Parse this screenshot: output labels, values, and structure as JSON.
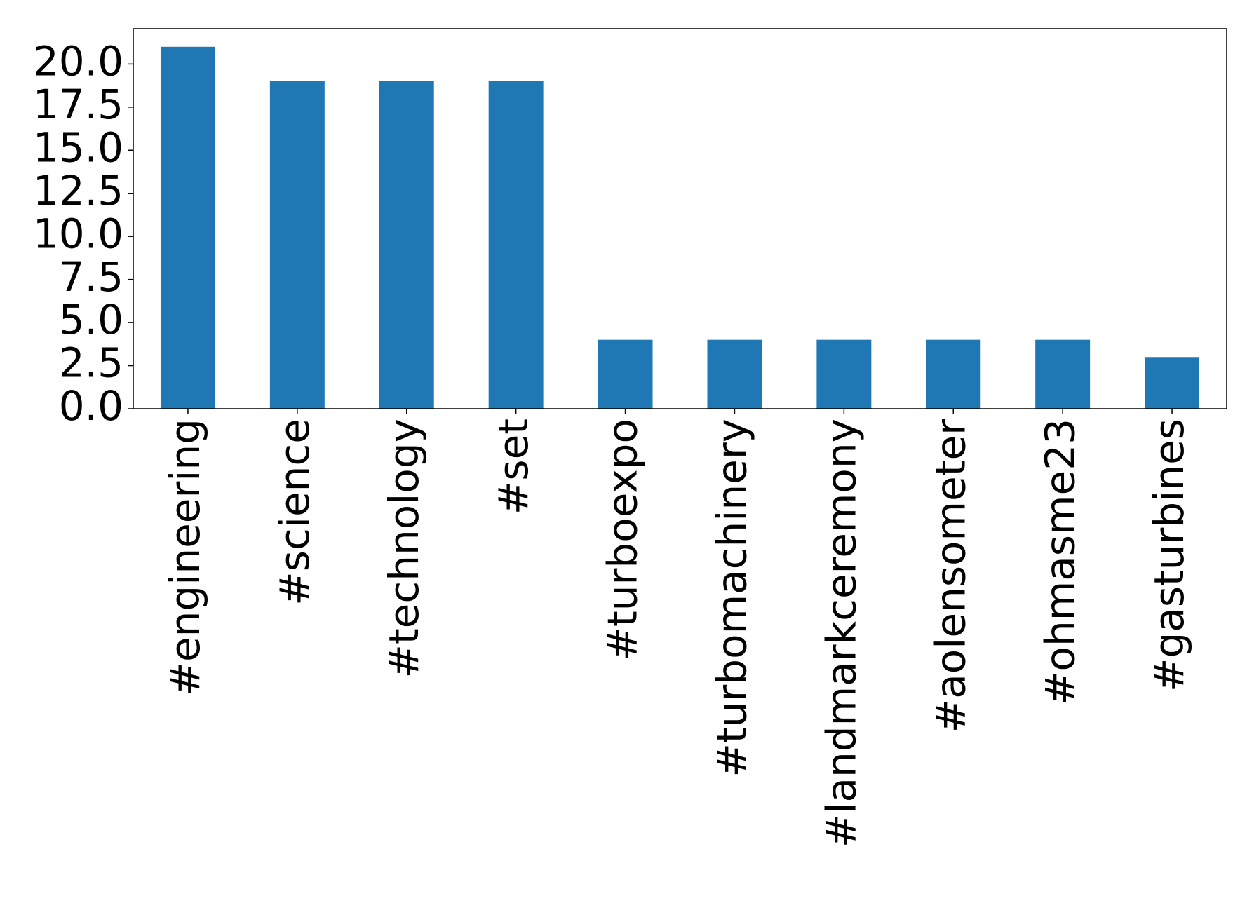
{
  "chart_data": {
    "type": "bar",
    "categories": [
      "#engineering",
      "#science",
      "#technology",
      "#set",
      "#turboexpo",
      "#turbomachinery",
      "#landmarkceremony",
      "#aolensometer",
      "#ohmasme23",
      "#gasturbines"
    ],
    "values": [
      21,
      19,
      19,
      19,
      4,
      4,
      4,
      4,
      4,
      3
    ],
    "color": "#1f77b4",
    "ylim": [
      0,
      22.05
    ],
    "yticks": [
      {
        "value": 0,
        "label": "0.0"
      },
      2.5,
      {
        "value": 5,
        "label": "5.0"
      },
      7.5,
      {
        "value": 10,
        "label": "10.0"
      },
      12.5,
      {
        "value": 15,
        "label": "15.0"
      },
      17.5,
      {
        "value": 20,
        "label": "20.0"
      }
    ],
    "grid": false
  }
}
